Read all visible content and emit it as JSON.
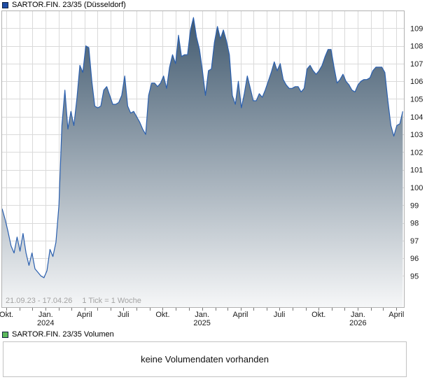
{
  "header": {
    "title": "SARTOR.FIN. 23/35 (Düsseldorf)",
    "marker_color": "#1e4ca5"
  },
  "chart": {
    "range_note": "21.09.23 - 17.04.26",
    "tick_note": "1 Tick = 1 Woche"
  },
  "chart_data": {
    "type": "area",
    "title": "SARTOR.FIN. 23/35 (Düsseldorf)",
    "start_date": "21.09.23",
    "end_date": "17.04.26",
    "tick_interval": "1 Tick = 1 Woche",
    "x_unit": "weeks",
    "grid": true,
    "ylim": [
      93.2,
      110.0
    ],
    "y_ticks": [
      95,
      96,
      97,
      98,
      99,
      100,
      101,
      102,
      103,
      104,
      105,
      106,
      107,
      108,
      109
    ],
    "x_month_gridlines_weeks": [
      1.43,
      5.86,
      10.14,
      14.57,
      19.0,
      23.14,
      27.57,
      31.86,
      36.29,
      40.57,
      45.0,
      49.43,
      53.71,
      58.14,
      62.43,
      66.86,
      71.29,
      75.29,
      79.71,
      84.0,
      88.43,
      92.71,
      97.14,
      101.57,
      105.86,
      110.29,
      114.57,
      119.0,
      123.43,
      127.43,
      131.86
    ],
    "x_ticks": [
      {
        "week": 1.43,
        "label": "Okt."
      },
      {
        "week": 14.57,
        "label": "Jan.",
        "year": "2024"
      },
      {
        "week": 27.57,
        "label": "April"
      },
      {
        "week": 40.57,
        "label": "Juli"
      },
      {
        "week": 53.71,
        "label": "Okt."
      },
      {
        "week": 66.86,
        "label": "Jan.",
        "year": "2025"
      },
      {
        "week": 79.71,
        "label": "April"
      },
      {
        "week": 92.71,
        "label": "Juli"
      },
      {
        "week": 105.86,
        "label": "Okt."
      },
      {
        "week": 119.0,
        "label": "Jan.",
        "year": "2026"
      },
      {
        "week": 131.86,
        "label": "April"
      }
    ],
    "line_color": "#2a5fae",
    "fill_gradient_top": "#3d566c",
    "fill_gradient_bottom": "#f6f7f8",
    "values": [
      98.8,
      98.2,
      97.5,
      96.7,
      96.3,
      97.2,
      96.4,
      97.4,
      96.3,
      95.6,
      96.3,
      95.4,
      95.2,
      95.0,
      94.9,
      95.3,
      96.5,
      96.1,
      96.9,
      99.0,
      103.5,
      105.5,
      103.3,
      104.3,
      103.5,
      105.0,
      106.9,
      106.5,
      108.0,
      107.9,
      106.0,
      104.6,
      104.5,
      104.6,
      105.5,
      105.7,
      105.2,
      104.7,
      104.7,
      104.8,
      105.2,
      106.3,
      104.6,
      104.2,
      104.3,
      104.0,
      103.7,
      103.3,
      103.0,
      105.2,
      105.9,
      105.9,
      105.7,
      105.9,
      106.3,
      105.6,
      106.8,
      107.5,
      107.0,
      108.6,
      107.4,
      107.5,
      107.5,
      108.9,
      109.6,
      108.5,
      107.8,
      106.6,
      105.2,
      106.6,
      106.7,
      108.2,
      109.1,
      108.4,
      108.9,
      108.3,
      107.5,
      105.2,
      104.7,
      106.0,
      104.5,
      105.3,
      106.3,
      105.6,
      104.9,
      104.9,
      105.3,
      105.1,
      105.5,
      106.0,
      106.5,
      107.1,
      106.6,
      107.0,
      106.1,
      105.8,
      105.6,
      105.6,
      105.7,
      105.7,
      105.4,
      105.6,
      106.7,
      106.9,
      106.6,
      106.4,
      106.6,
      106.9,
      107.4,
      107.8,
      107.8,
      106.8,
      105.9,
      106.1,
      106.4,
      106.0,
      105.8,
      105.5,
      105.4,
      105.8,
      106.0,
      106.1,
      106.1,
      106.2,
      106.6,
      106.8,
      106.8,
      106.8,
      106.5,
      104.9,
      103.5,
      102.9,
      103.5,
      103.6,
      104.3
    ]
  },
  "volume": {
    "title": "SARTOR.FIN. 23/35 Volumen",
    "marker_color": "#5cb85c",
    "empty_message": "keine Volumendaten vorhanden"
  }
}
